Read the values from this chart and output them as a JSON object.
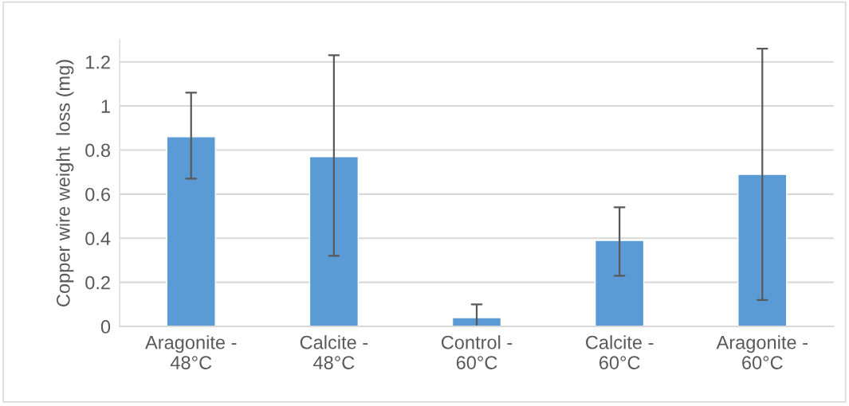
{
  "chart_data": {
    "type": "bar",
    "ylabel": "Copper wire weight  loss (mg)",
    "categories": [
      "Aragonite -\n48°C",
      "Calcite -\n48°C",
      "Control -\n60°C",
      "Calcite -\n60°C",
      "Aragonite -\n60°C"
    ],
    "values": [
      0.86,
      0.77,
      0.04,
      0.39,
      0.69
    ],
    "errors": [
      [
        0.67,
        1.06
      ],
      [
        0.32,
        1.23
      ],
      [
        0,
        0.1
      ],
      [
        0.23,
        0.54
      ],
      [
        0.12,
        1.26
      ]
    ],
    "color": "#5b9bd5",
    "ylim": [
      0,
      1.3
    ],
    "yticks": [
      0,
      0.2,
      0.4,
      0.6,
      0.8,
      1,
      1.2
    ],
    "grid": "y"
  }
}
